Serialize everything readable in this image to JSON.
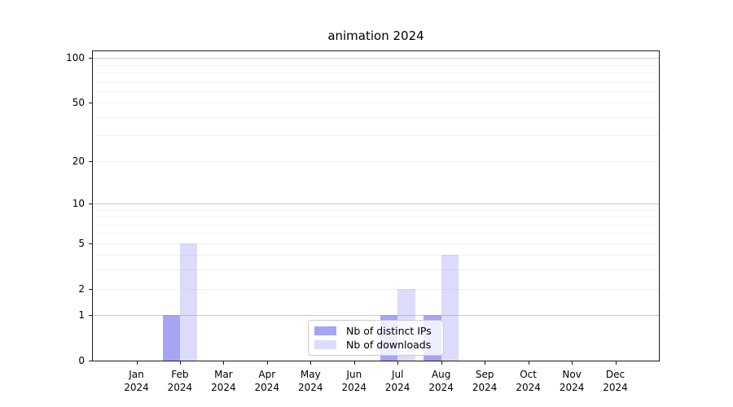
{
  "chart_data": {
    "type": "bar",
    "title": "animation 2024",
    "categories": [
      "Jan 2024",
      "Feb 2024",
      "Mar 2024",
      "Apr 2024",
      "May 2024",
      "Jun 2024",
      "Jul 2024",
      "Aug 2024",
      "Sep 2024",
      "Oct 2024",
      "Nov 2024",
      "Dec 2024"
    ],
    "series": [
      {
        "name": "Nb of distinct IPs",
        "values": [
          0,
          1,
          0,
          0,
          0,
          0,
          1,
          1,
          0,
          0,
          0,
          0
        ],
        "color": "rgba(140,140,240,0.78)"
      },
      {
        "name": "Nb of downloads",
        "values": [
          0,
          5,
          0,
          0,
          0,
          0,
          2,
          4,
          0,
          0,
          0,
          0
        ],
        "color": "rgba(140,140,240,0.30)"
      }
    ],
    "xlabel": "",
    "ylabel": "",
    "yscale": "log1p",
    "ylim": [
      0,
      111
    ],
    "ytick_labels": [
      0,
      1,
      2,
      5,
      10,
      20,
      50,
      100
    ],
    "ytick_major_grid": [
      1,
      10,
      100
    ],
    "ytick_minor_grid": [
      2,
      3,
      4,
      5,
      6,
      7,
      8,
      9,
      20,
      30,
      40,
      50,
      60,
      70,
      80,
      90
    ],
    "grid": "horizontal",
    "legend_position": "inside lower center",
    "colors": {
      "major_grid": "#cbcbcb",
      "minor_grid": "#f0f0f0",
      "spine": "#1a1a1a",
      "text": "#000000",
      "background": "#ffffff"
    }
  }
}
